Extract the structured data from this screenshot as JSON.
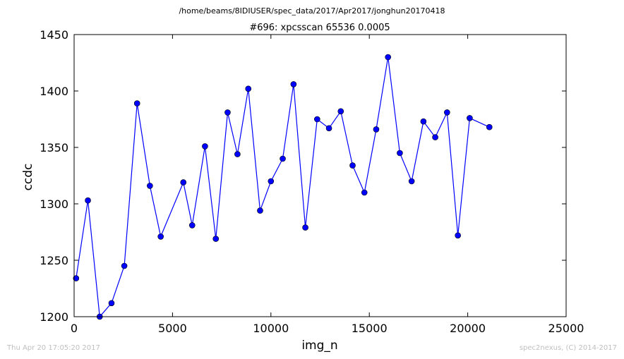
{
  "header": {
    "path": "/home/beams/8IDIUSER/spec_data/2017/Apr2017/jonghun20170418",
    "scan_title": "#696: xpcsscan 65536 0.0005"
  },
  "footer": {
    "timestamp": "Thu Apr 20 17:05:20 2017",
    "credit": "spec2nexus, (C) 2014-2017"
  },
  "colors": {
    "series": "#0000ff",
    "axes": "#000000",
    "footer": "#bfbfbf"
  },
  "chart_data": {
    "type": "line",
    "title": "#696: xpcsscan 65536 0.0005",
    "xlabel": "img_n",
    "ylabel": "ccdc",
    "xlim": [
      0,
      25000
    ],
    "ylim": [
      1200,
      1450
    ],
    "xticks": [
      0,
      5000,
      10000,
      15000,
      20000,
      25000
    ],
    "yticks": [
      1200,
      1250,
      1300,
      1350,
      1400,
      1450
    ],
    "grid": false,
    "marker": "circle",
    "series": [
      {
        "x": [
          100,
          700,
          1300,
          1900,
          2550,
          3200,
          3850,
          4400,
          5550,
          6000,
          6650,
          7200,
          7800,
          8300,
          8850,
          9450,
          10000,
          10600,
          11150,
          11750,
          12350,
          12950,
          13550,
          14150,
          14750,
          15350,
          15950,
          16550,
          17150,
          17750,
          18350,
          18950,
          19500,
          20100,
          21100
        ],
        "y": [
          1234,
          1303,
          1200,
          1212,
          1245,
          1389,
          1316,
          1271,
          1319,
          1281,
          1351,
          1269,
          1381,
          1344,
          1402,
          1294,
          1320,
          1340,
          1406,
          1279,
          1375,
          1367,
          1382,
          1334,
          1310,
          1366,
          1430,
          1345,
          1320,
          1373,
          1359,
          1381,
          1272,
          1376,
          1368
        ]
      }
    ]
  }
}
